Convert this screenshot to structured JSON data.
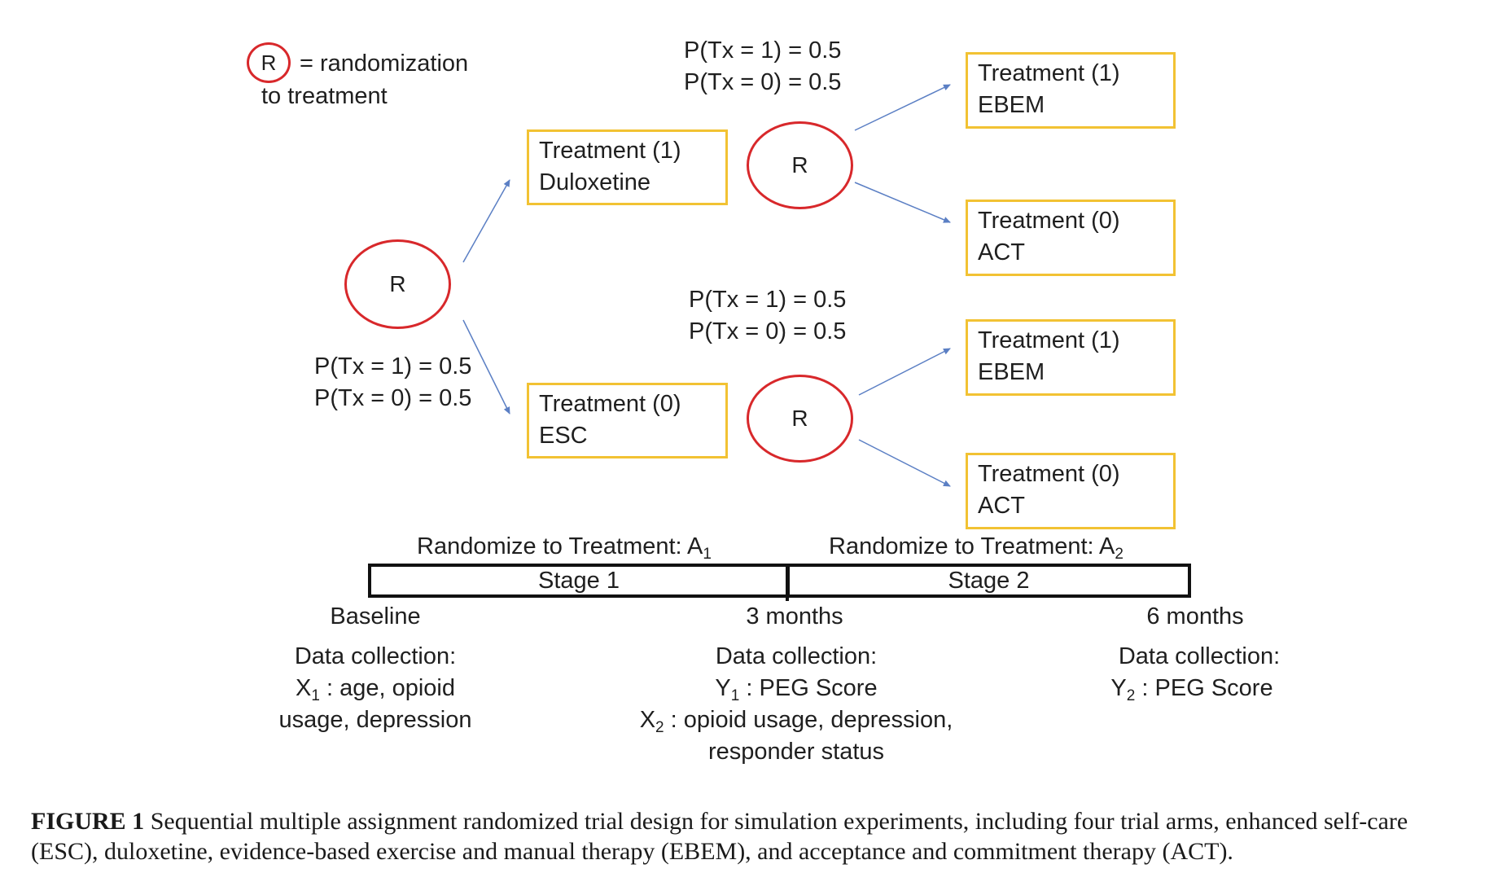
{
  "legend": {
    "symbol": "R",
    "text_line1": "= randomization",
    "text_line2": "to treatment"
  },
  "randomizers": [
    {
      "label": "R"
    },
    {
      "label": "R"
    },
    {
      "label": "R"
    }
  ],
  "probabilities": {
    "stage1": {
      "line1": "P(Tx = 1) = 0.5",
      "line2": "P(Tx = 0) = 0.5"
    },
    "stage2_top": {
      "line1": "P(Tx = 1) = 0.5",
      "line2": "P(Tx = 0) = 0.5"
    },
    "stage2_bottom": {
      "line1": "P(Tx = 1) = 0.5",
      "line2": "P(Tx = 0) = 0.5"
    }
  },
  "treatments": {
    "duloxetine": {
      "line1": "Treatment (1)",
      "line2": "Duloxetine"
    },
    "esc": {
      "line1": "Treatment (0)",
      "line2": "ESC"
    },
    "ebem_top": {
      "line1": "Treatment (1)",
      "line2": "EBEM"
    },
    "act_top": {
      "line1": "Treatment (0)",
      "line2": "ACT"
    },
    "ebem_bottom": {
      "line1": "Treatment (1)",
      "line2": "EBEM"
    },
    "act_bottom": {
      "line1": "Treatment (0)",
      "line2": "ACT"
    }
  },
  "timeline": {
    "randomize1": {
      "text": "Randomize to Treatment: A",
      "sub": "1"
    },
    "randomize2": {
      "text": "Randomize to Treatment: A",
      "sub": "2"
    },
    "stage1": "Stage 1",
    "stage2": "Stage 2",
    "timepoints": {
      "baseline": "Baseline",
      "three": "3 months",
      "six": "6 months"
    }
  },
  "data_collection": {
    "baseline": {
      "heading": "Data collection:",
      "var": "X",
      "sub": "1",
      "line1_rest": " : age, opioid",
      "line2": "usage, depression"
    },
    "three": {
      "heading": "Data collection:",
      "var1": "Y",
      "sub1": "1",
      "line1_rest": " : PEG Score",
      "var2": "X",
      "sub2": "2",
      "line2_rest": " : opioid usage, depression,",
      "line3": "responder status"
    },
    "six": {
      "heading": "Data collection:",
      "var": "Y",
      "sub": "2",
      "line1_rest": " : PEG Score"
    }
  },
  "caption": {
    "label": "FIGURE 1",
    "text": " Sequential multiple assignment randomized trial design for simulation experiments, including four trial arms, enhanced self-care (ESC), duloxetine, evidence-based exercise and manual therapy (EBEM), and acceptance and commitment therapy (ACT)."
  },
  "colors": {
    "box_border": "#f2c233",
    "circle_border": "#d8282b",
    "arrow": "#5b7fc4"
  }
}
